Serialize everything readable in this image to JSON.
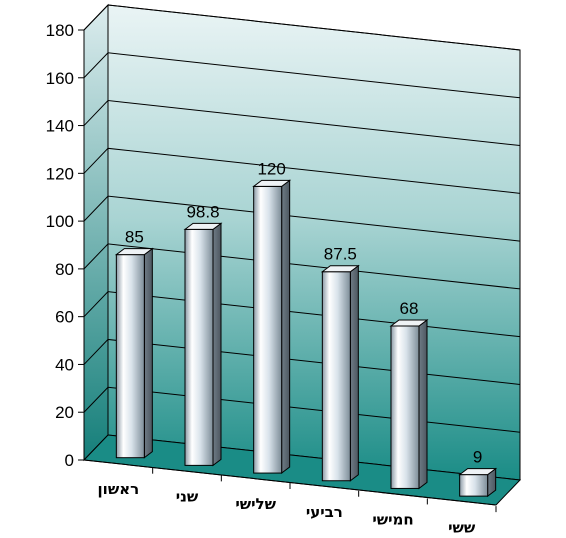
{
  "chart_data": {
    "type": "bar",
    "title": "",
    "xlabel": "",
    "ylabel": "",
    "categories": [
      "ראשון",
      "שני",
      "שלישי",
      "רביעי",
      "חמישי",
      "ששי"
    ],
    "values": [
      85,
      98.8,
      120,
      87.5,
      68,
      9
    ],
    "data_labels": [
      "85",
      "98.8",
      "120",
      "87.5",
      "68",
      "9"
    ],
    "ylim": [
      0,
      180
    ],
    "yticks": [
      "0",
      "20",
      "40",
      "60",
      "80",
      "100",
      "120",
      "140",
      "160",
      "180"
    ],
    "grid": true,
    "style": "3d-cylinder",
    "colors": {
      "bar": "#d8e4ec",
      "wall_top": "#eaf4f5",
      "wall_bottom": "#1a8c86",
      "floor": "#1a8c86"
    }
  }
}
